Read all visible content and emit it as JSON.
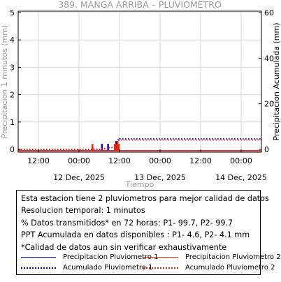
{
  "chart_data": {
    "type": "line",
    "title": "389. MANGA ARRIBA – PLUVIOMETRO",
    "xlabel": "Tiempo",
    "ylabel_left": "Precipitacion 1 minutos (mm)",
    "ylabel_right": "Precipitacion Acumulada (mm)",
    "x_range_hours": [
      0,
      72
    ],
    "ylim_left": [
      0,
      5
    ],
    "ylim_right": [
      0,
      60
    ],
    "yticks_left": [
      0,
      1,
      2,
      3,
      4,
      5
    ],
    "yticks_right": [
      0,
      20,
      40,
      60
    ],
    "xticks": [
      {
        "hour": 6,
        "label": "12:00",
        "date": ""
      },
      {
        "hour": 18,
        "label": "00:00",
        "date": "12 Dec, 2025"
      },
      {
        "hour": 30,
        "label": "12:00",
        "date": ""
      },
      {
        "hour": 42,
        "label": "00:00",
        "date": "13 Dec, 2025"
      },
      {
        "hour": 54,
        "label": "12:00",
        "date": ""
      },
      {
        "hour": 66,
        "label": "00:00",
        "date": "14 Dec, 2025"
      }
    ],
    "grid": true,
    "series": [
      {
        "name": "Precipitacion Pluviometro 1",
        "axis": "left",
        "style": "solid",
        "color": "#0000cc",
        "x": [
          24.8,
          26.6,
          29.0,
          29.4
        ],
        "y": [
          0.2,
          0.2,
          0.3,
          0.3
        ]
      },
      {
        "name": "Precipitacion Pluviometro 2",
        "axis": "left",
        "style": "solid",
        "color": "#ee2200",
        "x": [
          22.0,
          28.6,
          29.0,
          29.4,
          29.8
        ],
        "y": [
          0.2,
          0.2,
          0.2,
          0.3,
          0.2
        ]
      },
      {
        "name": "Acumulado Pluviometro 1",
        "axis": "right",
        "style": "dotted",
        "color": "#0000cc",
        "x": [
          0,
          22.0,
          24.8,
          26.6,
          28.6,
          29.0,
          29.4,
          30.0,
          72.0
        ],
        "y": [
          0,
          0,
          0.3,
          0.8,
          1.2,
          2.6,
          4.2,
          4.6,
          4.6
        ]
      },
      {
        "name": "Acumulado Pluviometro 2",
        "axis": "right",
        "style": "dotted",
        "color": "#ee2200",
        "x": [
          0,
          22.0,
          24.8,
          26.6,
          28.6,
          29.0,
          29.4,
          29.8,
          72.0
        ],
        "y": [
          0,
          0.1,
          0.4,
          0.8,
          1.1,
          2.3,
          3.6,
          4.1,
          4.1
        ]
      }
    ]
  },
  "info": {
    "line1": "Esta estacion tiene 2 pluviometros para mejor calidad de datos",
    "line2": "Resolucion temporal: 1 minutos",
    "line3": "% Datos transmitidos* en 72 horas: P1- 99.7, P2- 99.7",
    "line4": "PPT Acumulada en datos disponibles : P1-  4.6, P2-  4.1 mm",
    "line5": "*Calidad de datos aun sin verificar exhaustivamente"
  },
  "legend": {
    "p1": "Precipitacion Pluviometro 1",
    "p2": "Precipitacion Pluviometro 2",
    "a1": "Acumulado Pluviometro 1",
    "a2": "Acumulado Pluviometro 2"
  },
  "colors": {
    "p1": "#0000cc",
    "p2": "#ee2200",
    "grid": "#d9d9d9",
    "axis": "#000000",
    "label_gray": "#999999"
  }
}
